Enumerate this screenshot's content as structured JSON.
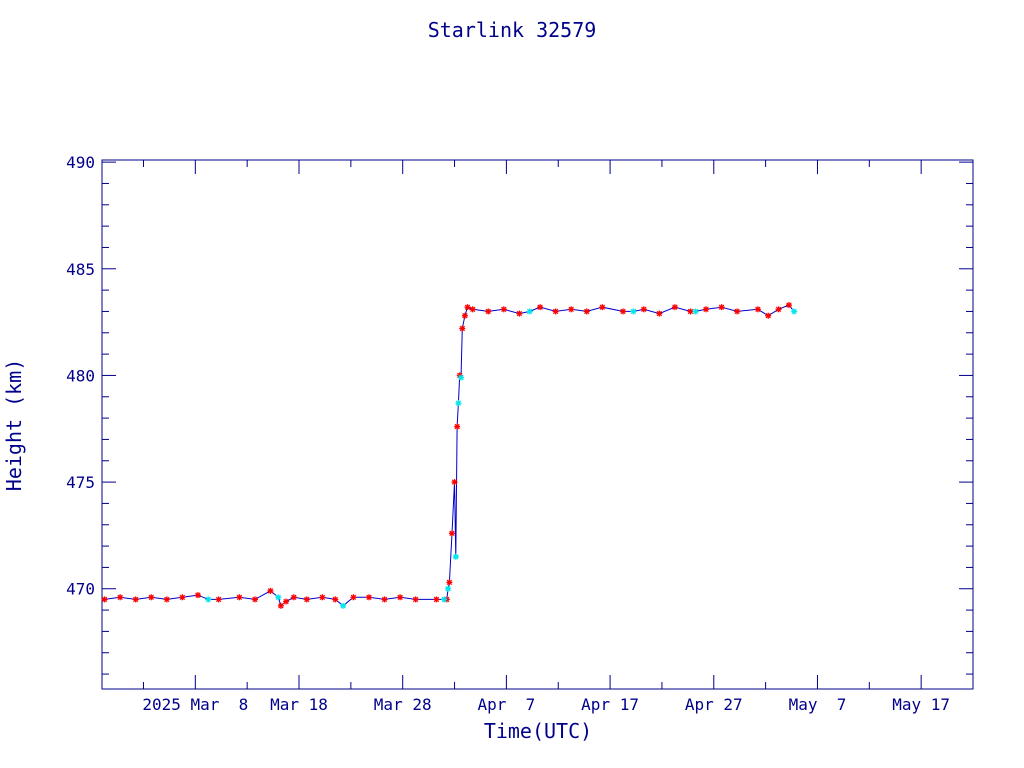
{
  "chart_data": {
    "type": "line",
    "title": "Starlink 32579",
    "xlabel": "Time(UTC)",
    "ylabel": "Height (km)",
    "x_tick_labels": [
      "2025 Mar  8",
      "Mar 18",
      "Mar 28",
      "Apr  7",
      "Apr 17",
      "Apr 27",
      "May  7",
      "May 17"
    ],
    "x_tick_dates": [
      "2025-03-08",
      "2025-03-18",
      "2025-03-28",
      "2025-04-07",
      "2025-04-17",
      "2025-04-27",
      "2025-05-07",
      "2025-05-17"
    ],
    "xlim": [
      "2025-02-27",
      "2025-05-22"
    ],
    "y_ticks": [
      470,
      475,
      480,
      485,
      490
    ],
    "ylim": [
      465.3,
      490.1
    ],
    "grid": false,
    "colors": {
      "axes": "#00008B",
      "text": "#00008B",
      "line": "#0000CD",
      "marker_primary": "#FF0000",
      "marker_secondary": "#00E5EE"
    },
    "series": [
      {
        "marker": "asterisk",
        "x": [
          "2025-02-27T06:00",
          "2025-02-28T18:00",
          "2025-03-02T06:00",
          "2025-03-03T18:00",
          "2025-03-05T06:00",
          "2025-03-06T18:00",
          "2025-03-08T06:00",
          "2025-03-10T06:00",
          "2025-03-12T06:00",
          "2025-03-13T18:00",
          "2025-03-15T06:00",
          "2025-03-16T06:00",
          "2025-03-16T18:00",
          "2025-03-17T12:00",
          "2025-03-18T18:00",
          "2025-03-20T06:00",
          "2025-03-21T12:00",
          "2025-03-23T06:00",
          "2025-03-24T18:00",
          "2025-03-26T06:00",
          "2025-03-27T18:00",
          "2025-03-29T06:00",
          "2025-03-31T06:00",
          "2025-04-01T06:00",
          "2025-04-01T12:00",
          "2025-04-01T18:00",
          "2025-04-02T00:00",
          "2025-04-02T06:00",
          "2025-04-02T12:00",
          "2025-04-02T18:00",
          "2025-04-03T00:00",
          "2025-04-03T06:00",
          "2025-04-03T18:00",
          "2025-04-05T06:00",
          "2025-04-06T18:00",
          "2025-04-08T06:00",
          "2025-04-10T06:00",
          "2025-04-11T18:00",
          "2025-04-13T06:00",
          "2025-04-14T18:00",
          "2025-04-16T06:00",
          "2025-04-18T06:00",
          "2025-04-20T06:00",
          "2025-04-21T18:00",
          "2025-04-23T06:00",
          "2025-04-24T18:00",
          "2025-04-26T06:00",
          "2025-04-27T18:00",
          "2025-04-29T06:00",
          "2025-05-01T06:00",
          "2025-05-02T06:00",
          "2025-05-03T06:00",
          "2025-05-04T06:00"
        ],
        "y": [
          469.5,
          469.6,
          469.5,
          469.6,
          469.5,
          469.6,
          469.7,
          469.5,
          469.6,
          469.5,
          469.9,
          469.2,
          469.4,
          469.6,
          469.5,
          469.6,
          469.5,
          469.6,
          469.6,
          469.5,
          469.6,
          469.5,
          469.5,
          469.5,
          470.3,
          472.6,
          475.0,
          477.6,
          480.0,
          482.2,
          482.8,
          483.2,
          483.1,
          483.0,
          483.1,
          482.9,
          483.2,
          483.0,
          483.1,
          483.0,
          483.2,
          483.0,
          483.1,
          482.9,
          483.2,
          483.0,
          483.1,
          483.2,
          483.0,
          483.1,
          482.8,
          483.1,
          483.3
        ]
      },
      {
        "marker": "asterisk",
        "x": [
          "2025-03-09T06:00",
          "2025-03-16T00:00",
          "2025-03-22T06:00",
          "2025-04-01T00:00",
          "2025-04-01T09:00",
          "2025-04-02T03:00",
          "2025-04-02T09:00",
          "2025-04-02T15:00",
          "2025-04-09T06:00",
          "2025-04-19T06:00",
          "2025-04-25T06:00",
          "2025-05-04T18:00"
        ],
        "y": [
          469.5,
          469.6,
          469.2,
          469.5,
          470.0,
          471.5,
          478.7,
          479.9,
          483.0,
          483.0,
          483.0,
          483.0
        ]
      }
    ]
  }
}
